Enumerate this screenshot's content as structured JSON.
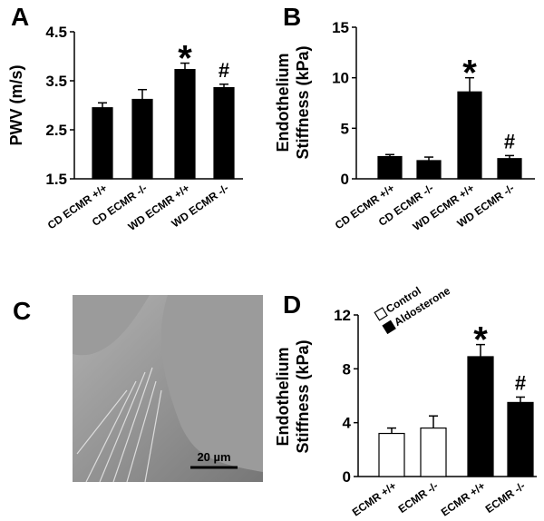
{
  "chart_data": [
    {
      "type": "bar",
      "panel": "A",
      "ylabel": "PWV (m/s)",
      "categories": [
        "CD ECMR +/+",
        "CD ECMR -/-",
        "WD ECMR +/+",
        "WD ECMR -/-"
      ],
      "series": [
        {
          "color": "#000000",
          "values": [
            2.95,
            3.12,
            3.73,
            3.36
          ],
          "errors": [
            0.1,
            0.2,
            0.13,
            0.07
          ]
        }
      ],
      "markers": [
        null,
        null,
        "*",
        "#"
      ],
      "ylim": [
        1.5,
        4.5
      ],
      "yticks": [
        1.5,
        2.5,
        3.5,
        4.5
      ]
    },
    {
      "type": "bar",
      "panel": "B",
      "ylabel": [
        "Endothelium",
        "Stiffness (kPa)"
      ],
      "categories": [
        "CD ECMR +/+",
        "CD ECMR -/-",
        "WD ECMR +/+",
        "WD ECMR -/-"
      ],
      "series": [
        {
          "color": "#000000",
          "values": [
            2.2,
            1.8,
            8.6,
            2.0
          ],
          "errors": [
            0.2,
            0.35,
            1.4,
            0.3
          ]
        }
      ],
      "markers": [
        null,
        null,
        "*",
        "#"
      ],
      "ylim": [
        0,
        15
      ],
      "yticks": [
        0,
        5,
        10,
        15
      ]
    },
    {
      "type": "bar",
      "panel": "D",
      "ylabel": [
        "Endothelium",
        "Stiffness (kPa)"
      ],
      "categories": [
        "ECMR +/+",
        "ECMR -/-",
        "ECMR +/+",
        "ECMR -/-"
      ],
      "series": [
        {
          "name": "Control",
          "color": "#ffffff",
          "values": [
            3.2,
            3.6,
            null,
            null
          ],
          "errors": [
            0.4,
            0.9,
            null,
            null
          ]
        },
        {
          "name": "Aldosterone",
          "color": "#000000",
          "values": [
            null,
            null,
            8.9,
            5.5
          ],
          "errors": [
            null,
            null,
            0.9,
            0.4
          ]
        }
      ],
      "markers": [
        null,
        null,
        "*",
        "#"
      ],
      "ylim": [
        0,
        12
      ],
      "yticks": [
        0,
        4,
        8,
        12
      ]
    }
  ],
  "image": {
    "panel": "C",
    "scale_bar": "20 µm"
  }
}
